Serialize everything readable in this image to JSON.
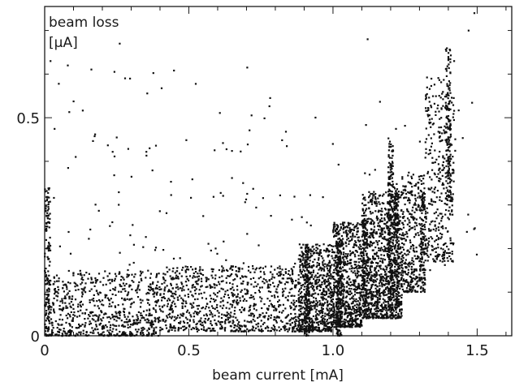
{
  "chart_data": {
    "type": "scatter",
    "title": "",
    "xlabel": "beam current [mA]",
    "ylabel_line1": "beam loss",
    "ylabel_line2": "[μA]",
    "xlim": [
      0,
      1.62
    ],
    "ylim": [
      0,
      0.755
    ],
    "x_ticks": [
      0,
      0.5,
      1.0,
      1.5
    ],
    "x_tick_labels": [
      "0",
      "0.5",
      "1.0",
      "1.5"
    ],
    "y_ticks": [
      0,
      0.5
    ],
    "y_tick_labels": [
      "0",
      "0.5"
    ],
    "grid": false,
    "legend": "none",
    "marker_color": "#111111",
    "clusters": [
      {
        "x_min": 0.0,
        "x_max": 0.02,
        "y_min": 0.0,
        "y_max": 0.34,
        "count": 160
      },
      {
        "x_min": 0.02,
        "x_max": 0.4,
        "y_min": 0.0,
        "y_max": 0.15,
        "count": 700
      },
      {
        "x_min": 0.4,
        "x_max": 0.88,
        "y_min": 0.01,
        "y_max": 0.16,
        "count": 900
      },
      {
        "x_min": 0.88,
        "x_max": 1.0,
        "y_min": 0.01,
        "y_max": 0.21,
        "count": 700
      },
      {
        "x_min": 1.0,
        "x_max": 1.1,
        "y_min": 0.02,
        "y_max": 0.26,
        "count": 700
      },
      {
        "x_min": 1.1,
        "x_max": 1.24,
        "y_min": 0.04,
        "y_max": 0.33,
        "count": 1000
      },
      {
        "x_min": 1.24,
        "x_max": 1.32,
        "y_min": 0.1,
        "y_max": 0.37,
        "count": 350
      },
      {
        "x_min": 1.32,
        "x_max": 1.42,
        "y_min": 0.17,
        "y_max": 0.6,
        "count": 350
      },
      {
        "x_min": 0.02,
        "x_max": 1.5,
        "y_min": 0.15,
        "y_max": 0.62,
        "count": 160
      }
    ],
    "columns": [
      {
        "x": 0.91,
        "y_min": 0.0,
        "y_max": 0.21,
        "count": 140
      },
      {
        "x": 1.02,
        "y_min": 0.0,
        "y_max": 0.22,
        "count": 180
      },
      {
        "x": 1.11,
        "y_min": 0.04,
        "y_max": 0.27,
        "count": 140
      },
      {
        "x": 1.2,
        "y_min": 0.06,
        "y_max": 0.45,
        "count": 200
      },
      {
        "x": 1.22,
        "y_min": 0.06,
        "y_max": 0.35,
        "count": 160
      },
      {
        "x": 1.31,
        "y_min": 0.12,
        "y_max": 0.33,
        "count": 90
      },
      {
        "x": 1.4,
        "y_min": 0.3,
        "y_max": 0.66,
        "count": 140
      }
    ],
    "highlights": [
      {
        "x": 1.49,
        "y": 0.74
      },
      {
        "x": 1.47,
        "y": 0.7
      },
      {
        "x": 1.12,
        "y": 0.68
      },
      {
        "x": 1.42,
        "y": 0.63
      },
      {
        "x": 0.02,
        "y": 0.63
      },
      {
        "x": 0.08,
        "y": 0.62
      },
      {
        "x": 0.26,
        "y": 0.67
      }
    ]
  }
}
